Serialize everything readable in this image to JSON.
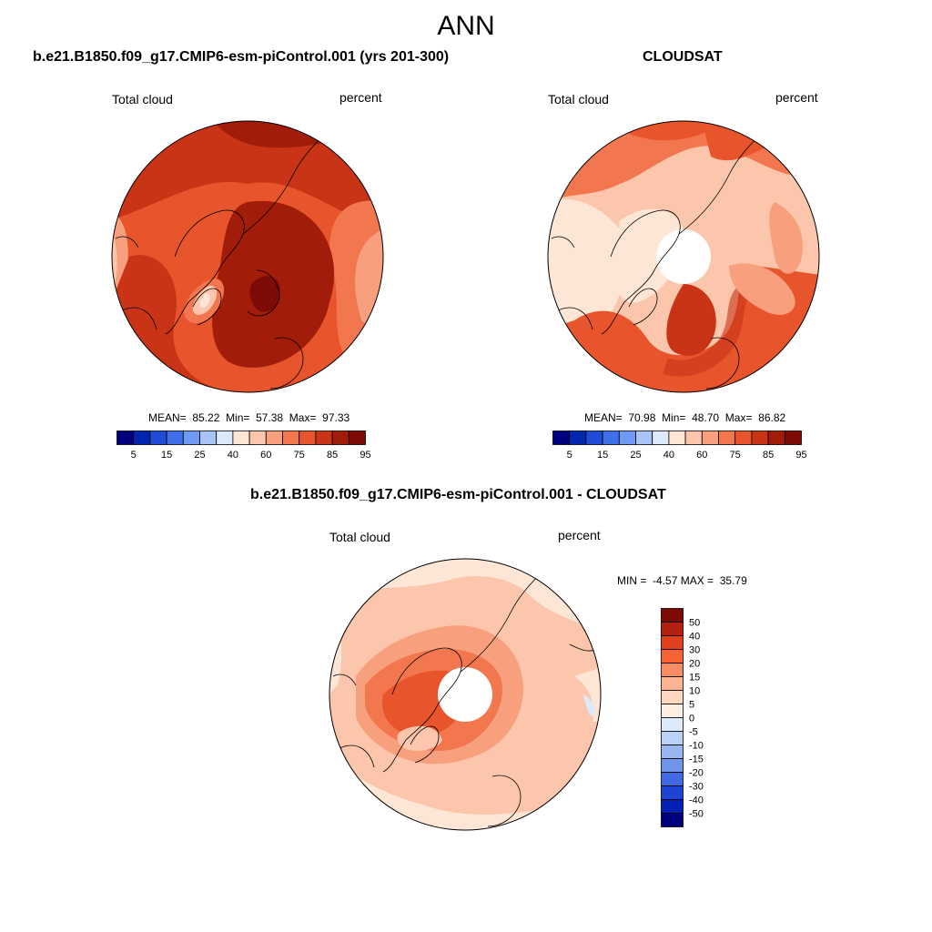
{
  "figure_title": "ANN",
  "panels": [
    {
      "title": "b.e21.B1850.f09_g17.CMIP6-esm-piControl.001 (yrs 201-300)",
      "left_label": "Total cloud",
      "right_label": "percent",
      "stats": {
        "mean_label": "MEAN=",
        "mean": "85.22",
        "min_label": "Min=",
        "min": "57.38",
        "max_label": "Max=",
        "max": "97.33"
      }
    },
    {
      "title": "CLOUDSAT",
      "left_label": "Total cloud",
      "right_label": "percent",
      "stats": {
        "mean_label": "MEAN=",
        "mean": "70.98",
        "min_label": "Min=",
        "min": "48.70",
        "max_label": "Max=",
        "max": "86.82"
      }
    },
    {
      "title": "b.e21.B1850.f09_g17.CMIP6-esm-piControl.001 - CLOUDSAT",
      "left_label": "Total cloud",
      "right_label": "percent",
      "stats": {
        "min_label": "MIN =",
        "min": "-4.57",
        "max_label": "MAX =",
        "max": "35.79"
      }
    }
  ],
  "colorbar_abs": {
    "colors": [
      "#00007f",
      "#0026b0",
      "#1f4bd6",
      "#3f70ea",
      "#6f99f2",
      "#a8c4f6",
      "#dbe9fb",
      "#fde6d6",
      "#fbc6ab",
      "#f8a07e",
      "#f2774f",
      "#e8542c",
      "#c83415",
      "#a11d0a",
      "#7e0a05"
    ],
    "tick_labels": [
      "5",
      "15",
      "25",
      "40",
      "60",
      "75",
      "85",
      "95"
    ]
  },
  "colorbar_diff": {
    "colors": [
      "#7e0a05",
      "#b42110",
      "#e0401d",
      "#f66436",
      "#fa8c63",
      "#fbb391",
      "#fdd6bf",
      "#fdeee2",
      "#ddeaf9",
      "#bcd2f5",
      "#98b7f1",
      "#6f94ea",
      "#3f6ae2",
      "#1d45d2",
      "#0520b4",
      "#00007f"
    ],
    "tick_labels": [
      "50",
      "40",
      "30",
      "20",
      "15",
      "10",
      "5",
      "0",
      "-5",
      "-10",
      "-15",
      "-20",
      "-30",
      "-40",
      "-50"
    ]
  },
  "map_colors": {
    "dark_red": "#a11d0a",
    "red": "#c83415",
    "orange_red": "#e8542c",
    "orange": "#f2774f",
    "salmon": "#f8a07e",
    "peach": "#fbc6ab",
    "light_peach": "#fde6d6",
    "light_blue": "#dbe9fb",
    "blue_tint": "#bcd2f5"
  }
}
